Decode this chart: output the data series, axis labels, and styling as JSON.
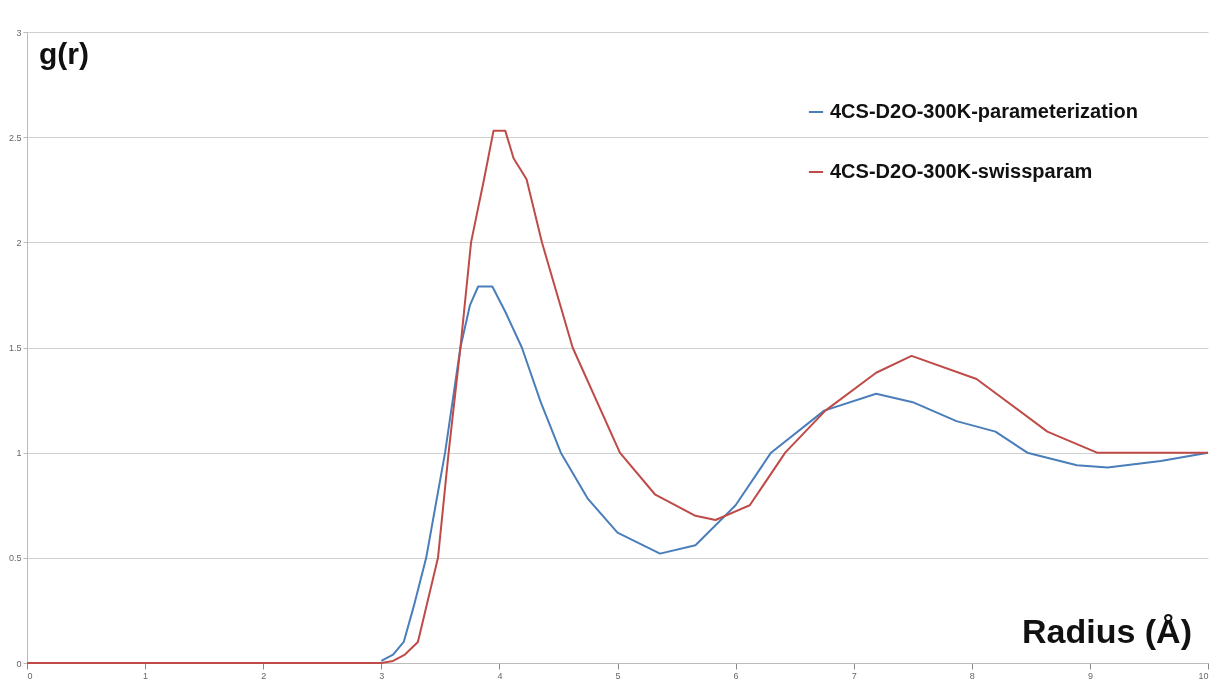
{
  "chart_data": {
    "type": "line",
    "xlabel": "Radius (Å)",
    "ylabel": "g(r)",
    "xlim": [
      0,
      10
    ],
    "xticks": [
      0,
      1,
      2,
      3,
      4,
      5,
      6,
      7,
      8,
      9,
      10
    ],
    "ylim": [
      0,
      3
    ],
    "yticks": [
      0,
      0.5,
      1,
      1.5,
      2,
      2.5,
      3
    ],
    "grid": "y",
    "legend": "top right",
    "series": [
      {
        "name": "4CS-D2O-300K-parameterization",
        "color": "#4a7ebb",
        "x": [
          3.0,
          3.1,
          3.19,
          3.28,
          3.38,
          3.54,
          3.67,
          3.75,
          3.82,
          3.94,
          4.05,
          4.19,
          4.35,
          4.52,
          4.75,
          5.0,
          5.36,
          5.66,
          6.0,
          6.3,
          6.75,
          7.19,
          7.5,
          7.87,
          8.2,
          8.47,
          8.89,
          9.15,
          9.6,
          10
        ],
        "values": [
          0.01,
          0.04,
          0.1,
          0.28,
          0.5,
          1.0,
          1.5,
          1.7,
          1.79,
          1.79,
          1.67,
          1.5,
          1.24,
          1.0,
          0.78,
          0.62,
          0.52,
          0.56,
          0.75,
          1.0,
          1.2,
          1.28,
          1.24,
          1.15,
          1.1,
          1.0,
          0.94,
          0.93,
          0.96,
          1.0
        ]
      },
      {
        "name": "4CS-D2O-300K-swissparam",
        "color": "#be4b48",
        "x": [
          0,
          1,
          2,
          3.0,
          3.1,
          3.2,
          3.31,
          3.48,
          3.57,
          3.67,
          3.76,
          3.87,
          3.95,
          4.05,
          4.12,
          4.23,
          4.36,
          4.62,
          5.02,
          5.32,
          5.66,
          5.83,
          6.12,
          6.42,
          6.76,
          7.19,
          7.49,
          8.04,
          8.64,
          9.06,
          10
        ],
        "values": [
          0,
          0,
          0,
          0,
          0.01,
          0.04,
          0.1,
          0.5,
          1.0,
          1.5,
          2.0,
          2.3,
          2.53,
          2.53,
          2.4,
          2.3,
          2.0,
          1.5,
          1.0,
          0.8,
          0.7,
          0.68,
          0.75,
          1.0,
          1.2,
          1.38,
          1.46,
          1.35,
          1.1,
          1.0,
          1.0
        ]
      }
    ]
  }
}
